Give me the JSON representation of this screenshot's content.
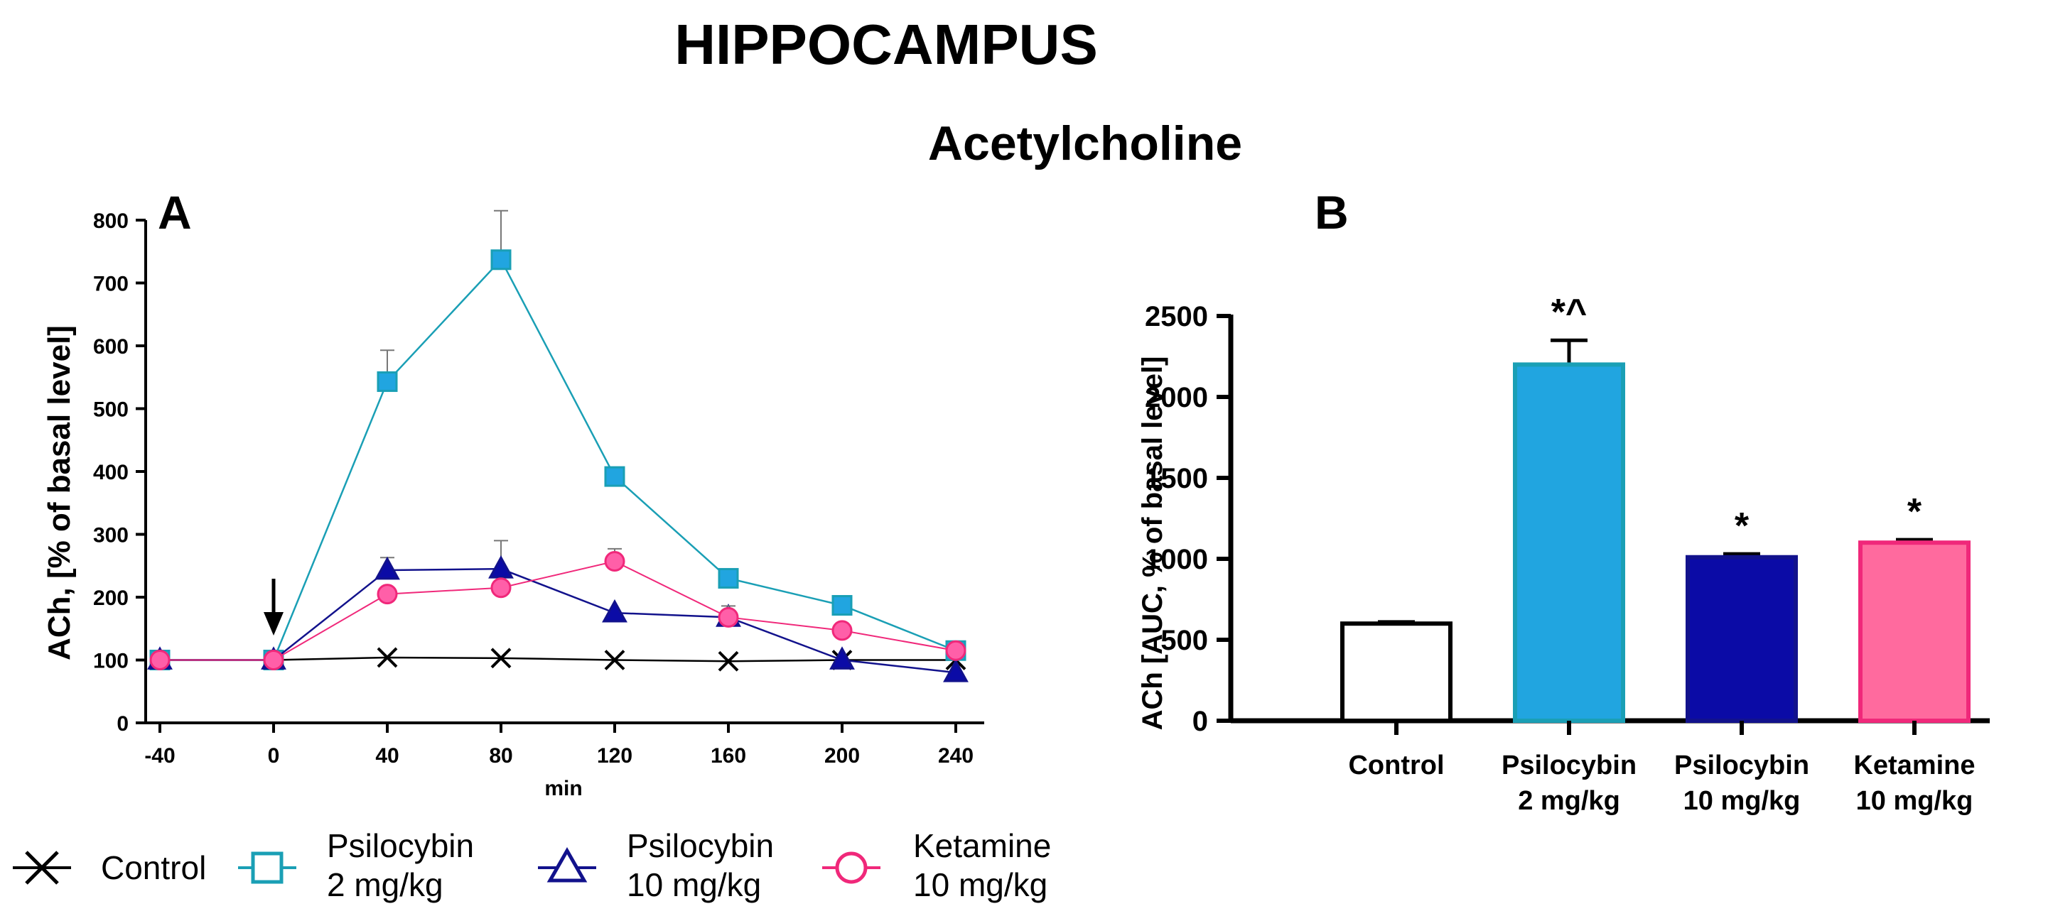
{
  "figure": {
    "title": "HIPPOCAMPUS",
    "subtitle": "Acetylcholine"
  },
  "colors": {
    "control": "#000000",
    "psilo2": "#1A9FB5",
    "psilo2_fill": "#21A5E0",
    "psilo10": "#12128C",
    "psilo10_fill": "#0B0BA6",
    "ketamine": "#F0287A",
    "ketamine_fill": "#FF6A9E",
    "ketamine_marker": "#FF5FA8"
  },
  "legend": [
    {
      "key": "control",
      "marker": "x-icon",
      "line1": "Control",
      "line2": ""
    },
    {
      "key": "psilo2",
      "marker": "square-icon",
      "line1": "Psilocybin",
      "line2": "2 mg/kg"
    },
    {
      "key": "psilo10",
      "marker": "triangle-icon",
      "line1": "Psilocybin",
      "line2": "10 mg/kg"
    },
    {
      "key": "ketamine",
      "marker": "circle-icon",
      "line1": "Ketamine",
      "line2": "10 mg/kg"
    }
  ],
  "chart_data": [
    {
      "panel": "A",
      "type": "line",
      "xlabel": "min",
      "ylabel": "ACh, [% of basal level]",
      "x": [
        -40,
        0,
        40,
        80,
        120,
        160,
        200,
        240
      ],
      "xticks": [
        -40,
        0,
        40,
        80,
        120,
        160,
        200,
        240
      ],
      "xlim": [
        -45,
        250
      ],
      "ylim": [
        0,
        800
      ],
      "yticks": [
        0,
        100,
        200,
        300,
        400,
        500,
        600,
        700,
        800
      ],
      "annotations": [
        {
          "type": "arrow-down",
          "x": 0,
          "label": ""
        }
      ],
      "series": [
        {
          "key": "control",
          "name": "Control",
          "marker": "x",
          "values": [
            100,
            100,
            104,
            103,
            100,
            98,
            100,
            100
          ],
          "errors": [
            0,
            0,
            0,
            0,
            0,
            0,
            0,
            0
          ]
        },
        {
          "key": "psilo2",
          "name": "Psilocybin 2 mg/kg",
          "marker": "square",
          "values": [
            100,
            100,
            543,
            737,
            392,
            230,
            187,
            115
          ],
          "errors": [
            0,
            0,
            50,
            78,
            10,
            5,
            0,
            0
          ]
        },
        {
          "key": "psilo10",
          "name": "Psilocybin 10 mg/kg",
          "marker": "triangle",
          "values": [
            100,
            100,
            243,
            245,
            175,
            168,
            100,
            80
          ],
          "errors": [
            0,
            0,
            20,
            45,
            0,
            0,
            0,
            0
          ]
        },
        {
          "key": "ketamine",
          "name": "Ketamine 10 mg/kg",
          "marker": "circle",
          "values": [
            100,
            100,
            205,
            215,
            257,
            168,
            147,
            115
          ],
          "errors": [
            0,
            0,
            0,
            0,
            20,
            18,
            0,
            0
          ]
        }
      ]
    },
    {
      "panel": "B",
      "type": "bar",
      "ylabel": "ACh [AUC, % of basal level]",
      "ylim": [
        0,
        2500
      ],
      "yticks": [
        0,
        500,
        1000,
        1500,
        2000,
        2500
      ],
      "categories": [
        {
          "line1": "Control",
          "line2": ""
        },
        {
          "line1": "Psilocybin",
          "line2": "2 mg/kg"
        },
        {
          "line1": "Psilocybin",
          "line2": "10 mg/kg"
        },
        {
          "line1": "Ketamine",
          "line2": "10 mg/kg"
        }
      ],
      "keys": [
        "control",
        "psilo2",
        "psilo10",
        "ketamine"
      ],
      "values": [
        600,
        2200,
        1010,
        1100
      ],
      "errors": [
        10,
        150,
        20,
        18
      ],
      "significance": [
        "",
        "*^",
        "*",
        "*"
      ]
    }
  ]
}
